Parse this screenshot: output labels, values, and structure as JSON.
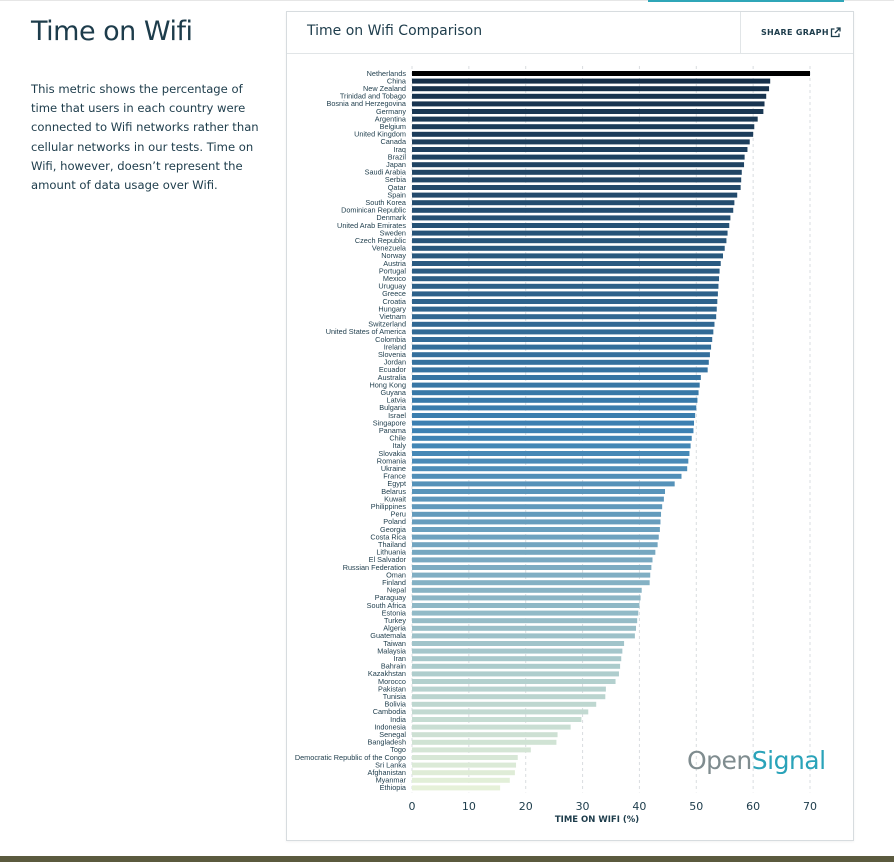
{
  "page": {
    "title": "Time on Wifi",
    "description": "This metric shows the percentage of time that users in each country were connected to Wifi networks rather than cellular networks in our tests. Time on Wifi, however, doesn’t represent the amount of data usage over Wifi."
  },
  "card": {
    "title": "Time on Wifi Comparison",
    "share_label": "SHARE GRAPH",
    "share_icon": "external-link-icon"
  },
  "watermark": {
    "part1": "Open",
    "part2": "Signal",
    "color1": "#7f8c8f",
    "color2": "#2aa3b9"
  },
  "colors": {
    "first_bar": "#000000",
    "dark": "#16304a",
    "mid": "#3d82b4",
    "light": "#e6f1d9"
  },
  "chart_data": {
    "type": "bar",
    "orientation": "horizontal",
    "title": "Time on Wifi Comparison",
    "xlabel": "TIME ON WIFI (%)",
    "ylabel": "",
    "xlim": [
      0,
      70
    ],
    "xticks": [
      0,
      10,
      20,
      30,
      40,
      50,
      60,
      70
    ],
    "grid": true,
    "categories": [
      "Netherlands",
      "China",
      "New Zealand",
      "Trinidad and Tobago",
      "Bosnia and Herzegovina",
      "Germany",
      "Argentina",
      "Belgium",
      "United Kingdom",
      "Canada",
      "Iraq",
      "Brazil",
      "Japan",
      "Saudi Arabia",
      "Serbia",
      "Qatar",
      "Spain",
      "South Korea",
      "Dominican Republic",
      "Denmark",
      "United Arab Emirates",
      "Sweden",
      "Czech Republic",
      "Venezuela",
      "Norway",
      "Austria",
      "Portugal",
      "Mexico",
      "Uruguay",
      "Greece",
      "Croatia",
      "Hungary",
      "Vietnam",
      "Switzerland",
      "United States of America",
      "Colombia",
      "Ireland",
      "Slovenia",
      "Jordan",
      "Ecuador",
      "Australia",
      "Hong Kong",
      "Guyana",
      "Latvia",
      "Bulgaria",
      "Israel",
      "Singapore",
      "Panama",
      "Chile",
      "Italy",
      "Slovakia",
      "Romania",
      "Ukraine",
      "France",
      "Egypt",
      "Belarus",
      "Kuwait",
      "Philippines",
      "Peru",
      "Poland",
      "Georgia",
      "Costa Rica",
      "Thailand",
      "Lithuania",
      "El Salvador",
      "Russian Federation",
      "Oman",
      "Finland",
      "Nepal",
      "Paraguay",
      "South Africa",
      "Estonia",
      "Turkey",
      "Algeria",
      "Guatemala",
      "Taiwan",
      "Malaysia",
      "Iran",
      "Bahrain",
      "Kazakhstan",
      "Morocco",
      "Pakistan",
      "Tunisia",
      "Bolivia",
      "Cambodia",
      "India",
      "Indonesia",
      "Senegal",
      "Bangladesh",
      "Togo",
      "Democratic Republic of the Congo",
      "Sri Lanka",
      "Afghanistan",
      "Myanmar",
      "Ethiopia"
    ],
    "values": [
      70.0,
      63.0,
      62.8,
      62.3,
      62.0,
      61.8,
      60.8,
      60.2,
      60.0,
      59.4,
      59.0,
      58.5,
      58.4,
      58.0,
      57.9,
      57.8,
      57.2,
      56.7,
      56.5,
      56.0,
      55.8,
      55.5,
      55.3,
      55.0,
      54.7,
      54.3,
      54.1,
      54.0,
      53.9,
      53.8,
      53.7,
      53.6,
      53.5,
      53.2,
      53.0,
      52.8,
      52.6,
      52.4,
      52.2,
      52.0,
      50.8,
      50.6,
      50.4,
      50.2,
      50.0,
      49.8,
      49.6,
      49.5,
      49.2,
      49.0,
      48.8,
      48.6,
      48.4,
      47.4,
      46.2,
      44.5,
      44.3,
      44.0,
      43.8,
      43.7,
      43.6,
      43.4,
      43.2,
      42.8,
      42.3,
      42.1,
      41.9,
      41.8,
      40.4,
      40.2,
      40.0,
      39.8,
      39.6,
      39.4,
      39.2,
      37.3,
      37.0,
      36.8,
      36.6,
      36.4,
      35.8,
      34.1,
      34.0,
      32.4,
      31.0,
      29.8,
      27.9,
      25.6,
      25.4,
      20.9,
      18.6,
      18.3,
      18.1,
      17.2,
      15.5
    ]
  }
}
